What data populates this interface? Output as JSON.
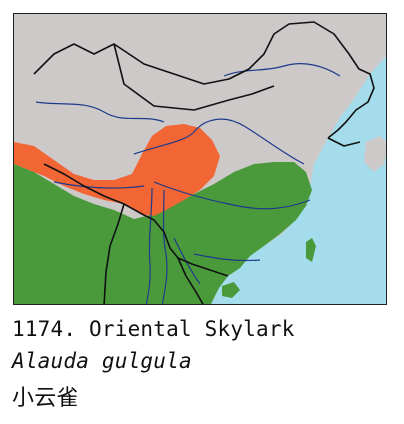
{
  "map": {
    "colors": {
      "sea": "#a5dcec",
      "land": "#cdc9c9",
      "range_resident": "#4a9a3c",
      "range_breeding": "#f26535",
      "rivers": "#1e3a8a",
      "borders": "#111111"
    },
    "layers": [
      "sea",
      "land",
      "range-resident",
      "range-breeding",
      "rivers",
      "national-borders"
    ]
  },
  "caption": {
    "line1": "1174. Oriental Skylark",
    "line2": "Alauda gulgula",
    "line3": "小云雀"
  }
}
